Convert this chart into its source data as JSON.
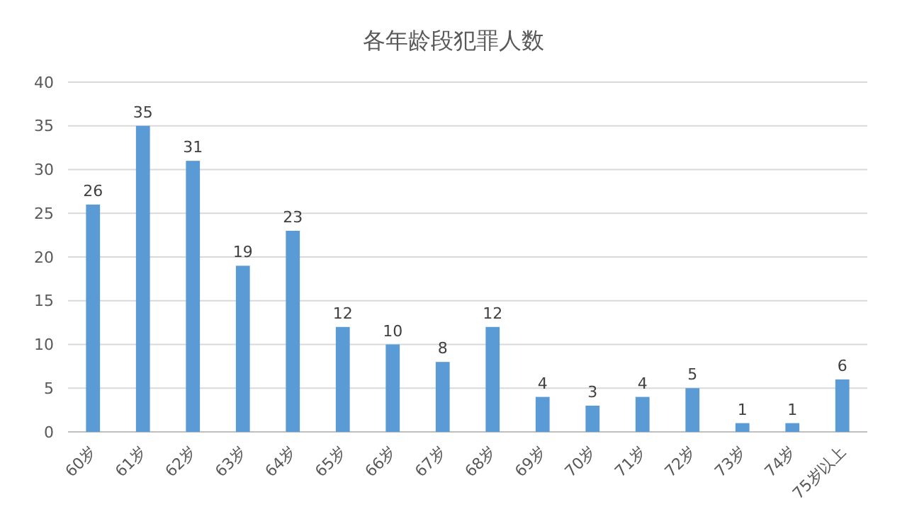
{
  "chart_data": {
    "type": "bar",
    "title": "各年龄段犯罪人数",
    "categories": [
      "60岁",
      "61岁",
      "62岁",
      "63岁",
      "64岁",
      "65岁",
      "66岁",
      "67岁",
      "68岁",
      "69岁",
      "70岁",
      "71岁",
      "72岁",
      "73岁",
      "74岁",
      "75岁以上"
    ],
    "values": [
      26,
      35,
      31,
      19,
      23,
      12,
      10,
      8,
      12,
      4,
      3,
      4,
      5,
      1,
      1,
      6
    ],
    "color": "#5b9bd5",
    "ylim": [
      0,
      40
    ],
    "yticks": [
      0,
      5,
      10,
      15,
      20,
      25,
      30,
      35,
      40
    ],
    "grid": "y",
    "data_labels": true
  }
}
